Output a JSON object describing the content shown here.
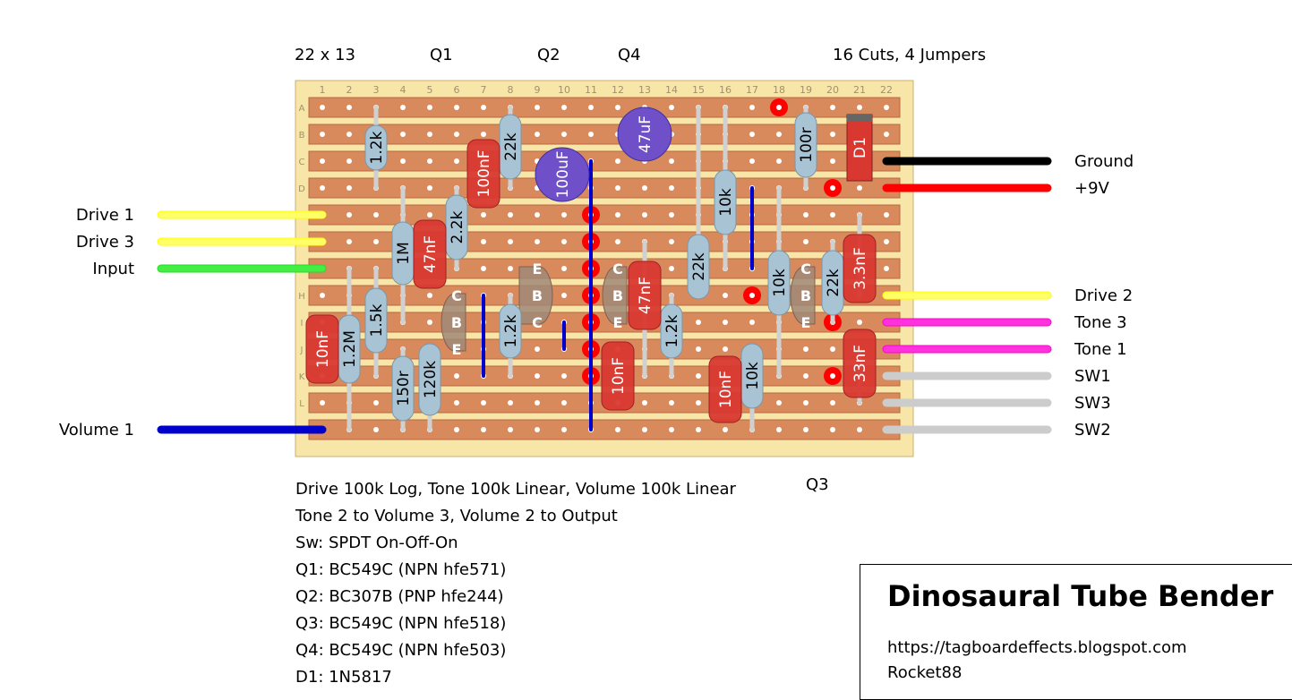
{
  "header": {
    "grid_size": "22 x 13",
    "q1": "Q1",
    "q2": "Q2",
    "q4": "Q4",
    "q3": "Q3",
    "cuts": "16 Cuts, 4 Jumpers"
  },
  "board": {
    "columns": [
      "1",
      "2",
      "3",
      "4",
      "5",
      "6",
      "7",
      "8",
      "9",
      "10",
      "11",
      "12",
      "13",
      "14",
      "15",
      "16",
      "17",
      "18",
      "19",
      "20",
      "21",
      "22"
    ],
    "rows": [
      "A",
      "B",
      "C",
      "D",
      "E",
      "F",
      "G",
      "H",
      "I",
      "J",
      "K",
      "L",
      "M"
    ]
  },
  "components": {
    "r_1k2_a": "1.2k",
    "r_1m": "1M",
    "r_2k2": "2.2k",
    "r_22k_a": "22k",
    "r_1k5": "1.5k",
    "r_1m2": "1.2M",
    "r_150r": "150r",
    "r_120k": "120k",
    "r_1k2_b": "1.2k",
    "r_1k2_c": "1.2k",
    "r_22k_b": "22k",
    "r_10k_a": "10k",
    "r_10k_b": "10k",
    "r_10k_c": "10k",
    "r_22k_c": "22k",
    "r_100r": "100r",
    "c_100nf": "100nF",
    "c_47nf_a": "47nF",
    "c_47nf_b": "47nF",
    "c_10nf_a": "10nF",
    "c_10nf_b": "10nF",
    "c_10nf_c": "10nF",
    "c_3n3f": "3.3nF",
    "c_33nf": "33nF",
    "e_100uf": "100uF",
    "e_47uf": "47uF",
    "d1": "D1",
    "pin_c": "C",
    "pin_b": "B",
    "pin_e": "E"
  },
  "wires": {
    "left": {
      "drive1": "Drive 1",
      "drive3": "Drive 3",
      "input": "Input",
      "volume1": "Volume 1"
    },
    "right": {
      "ground": "Ground",
      "v9": "+9V",
      "drive2": "Drive 2",
      "tone3": "Tone 3",
      "tone1": "Tone 1",
      "sw1": "SW1",
      "sw3": "SW3",
      "sw2": "SW2"
    },
    "colors": {
      "yellow": "#ffff00",
      "green": "#22dd22",
      "blue": "#0000cc",
      "black": "#000000",
      "red": "#ff0000",
      "magenta": "#ff00cc",
      "grey": "#cccccc"
    }
  },
  "notes": [
    "Drive 100k Log, Tone 100k Linear, Volume 100k Linear",
    "Tone 2 to Volume 3, Volume 2 to Output",
    "Sw: SPDT On-Off-On",
    "Q1: BC549C (NPN hfe571)",
    "Q2: BC307B (PNP hfe244)",
    "Q3: BC549C (NPN hfe518)",
    "Q4: BC549C (NPN hfe503)",
    "D1: 1N5817"
  ],
  "titlebox": {
    "title": "Dinosaural Tube Bender",
    "url": "https://tagboardeffects.blogspot.com",
    "author": "Rocket88"
  }
}
